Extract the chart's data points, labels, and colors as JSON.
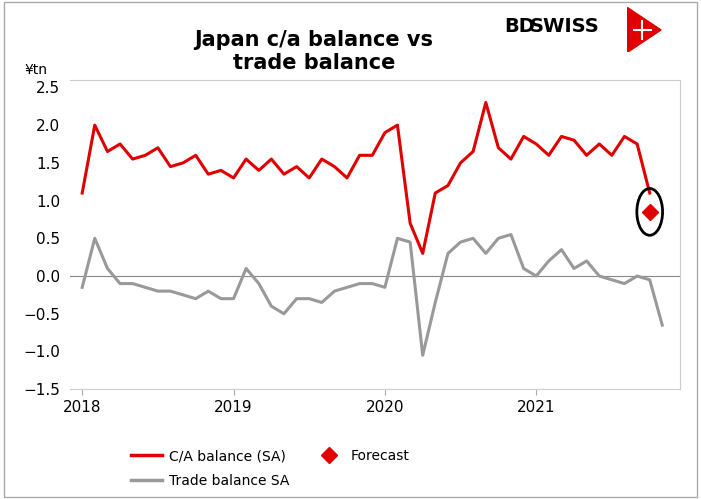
{
  "title": "Japan c/a balance vs\ntrade balance",
  "ylabel": "¥tn",
  "background_color": "#ffffff",
  "title_fontsize": 15,
  "ca_color": "#e00000",
  "trade_color": "#999999",
  "forecast_color": "#e00000",
  "ca_x": [
    2018.0,
    2018.083,
    2018.167,
    2018.25,
    2018.333,
    2018.417,
    2018.5,
    2018.583,
    2018.667,
    2018.75,
    2018.833,
    2018.917,
    2019.0,
    2019.083,
    2019.167,
    2019.25,
    2019.333,
    2019.417,
    2019.5,
    2019.583,
    2019.667,
    2019.75,
    2019.833,
    2019.917,
    2020.0,
    2020.083,
    2020.167,
    2020.25,
    2020.333,
    2020.417,
    2020.5,
    2020.583,
    2020.667,
    2020.75,
    2020.833,
    2020.917,
    2021.0,
    2021.083,
    2021.167,
    2021.25,
    2021.333,
    2021.417,
    2021.5,
    2021.583,
    2021.667,
    2021.75
  ],
  "ca_y": [
    1.1,
    2.0,
    1.65,
    1.75,
    1.55,
    1.6,
    1.7,
    1.45,
    1.5,
    1.6,
    1.35,
    1.4,
    1.3,
    1.55,
    1.4,
    1.55,
    1.35,
    1.45,
    1.3,
    1.55,
    1.45,
    1.3,
    1.6,
    1.6,
    1.9,
    2.0,
    0.7,
    0.3,
    1.1,
    1.2,
    1.5,
    1.65,
    2.3,
    1.7,
    1.55,
    1.85,
    1.75,
    1.6,
    1.85,
    1.8,
    1.6,
    1.75,
    1.6,
    1.85,
    1.75,
    1.1
  ],
  "trade_x": [
    2018.0,
    2018.083,
    2018.167,
    2018.25,
    2018.333,
    2018.417,
    2018.5,
    2018.583,
    2018.667,
    2018.75,
    2018.833,
    2018.917,
    2019.0,
    2019.083,
    2019.167,
    2019.25,
    2019.333,
    2019.417,
    2019.5,
    2019.583,
    2019.667,
    2019.75,
    2019.833,
    2019.917,
    2020.0,
    2020.083,
    2020.167,
    2020.25,
    2020.333,
    2020.417,
    2020.5,
    2020.583,
    2020.667,
    2020.75,
    2020.833,
    2020.917,
    2021.0,
    2021.083,
    2021.167,
    2021.25,
    2021.333,
    2021.417,
    2021.5,
    2021.583,
    2021.667,
    2021.75,
    2021.833
  ],
  "trade_y": [
    -0.15,
    0.5,
    0.1,
    -0.1,
    -0.1,
    -0.15,
    -0.2,
    -0.2,
    -0.25,
    -0.3,
    -0.2,
    -0.3,
    -0.3,
    0.1,
    -0.1,
    -0.4,
    -0.5,
    -0.3,
    -0.3,
    -0.35,
    -0.2,
    -0.15,
    -0.1,
    -0.1,
    -0.15,
    0.5,
    0.45,
    -1.05,
    -0.35,
    0.3,
    0.45,
    0.5,
    0.3,
    0.5,
    0.55,
    0.1,
    -0.0,
    0.2,
    0.35,
    0.1,
    0.2,
    0.0,
    -0.05,
    -0.1,
    0.0,
    -0.05,
    -0.65
  ],
  "forecast_x": 2021.75,
  "forecast_y": 0.85,
  "xlim": [
    2017.92,
    2021.95
  ],
  "ylim": [
    -1.5,
    2.6
  ],
  "yticks": [
    -1.5,
    -1.0,
    -0.5,
    0.0,
    0.5,
    1.0,
    1.5,
    2.0,
    2.5
  ],
  "xtick_positions": [
    2018,
    2019,
    2020,
    2021
  ],
  "xtick_labels": [
    "2018",
    "2019",
    "2020",
    "2021"
  ]
}
